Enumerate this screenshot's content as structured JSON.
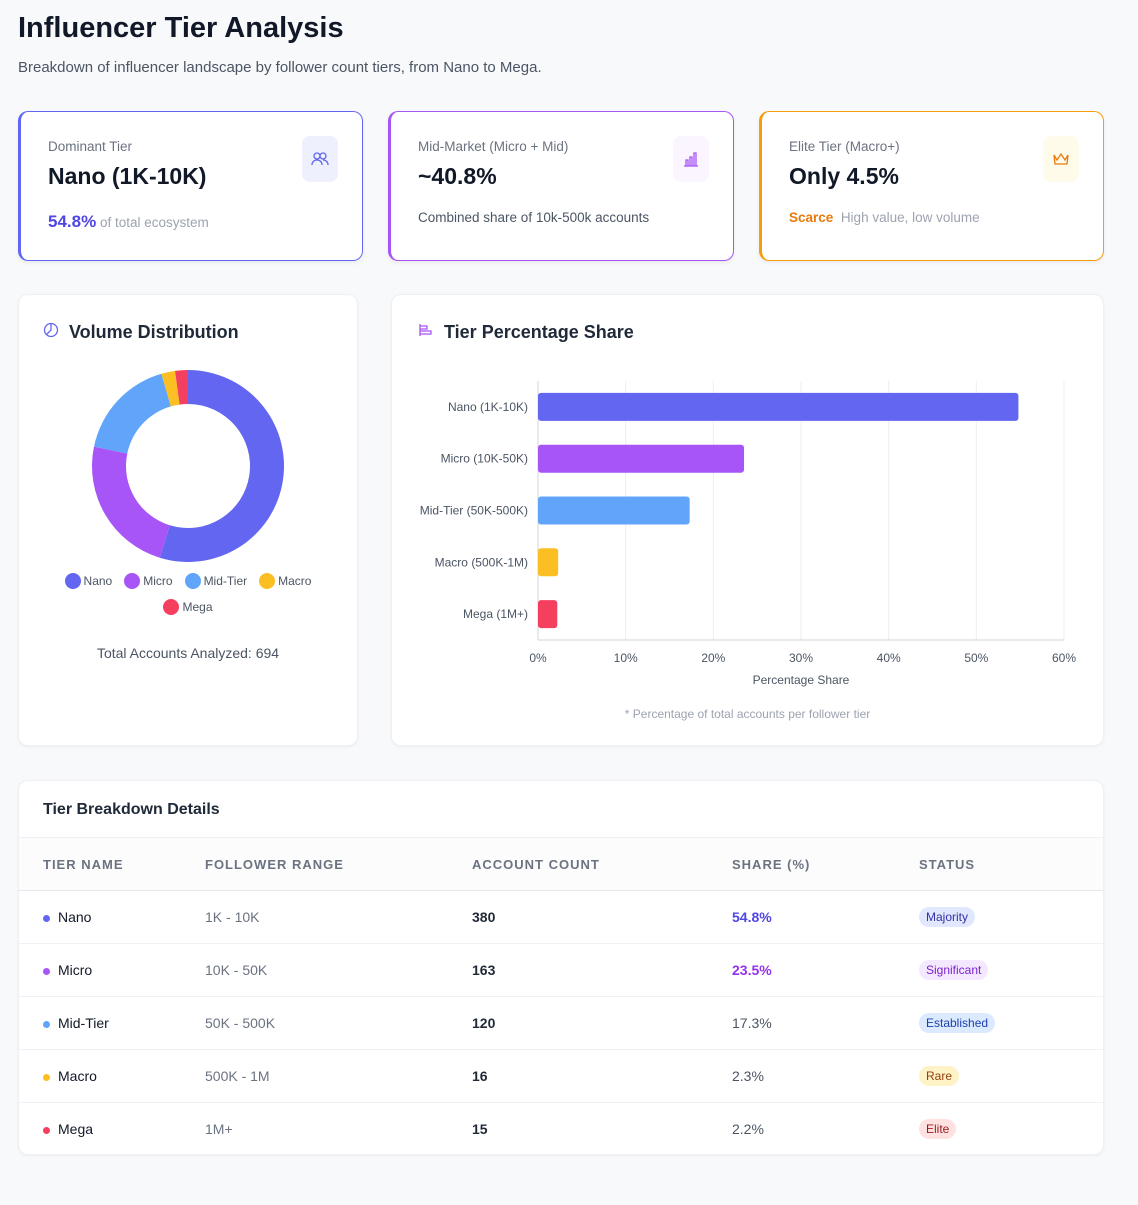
{
  "header": {
    "title": "Influencer Tier Analysis",
    "subtitle": "Breakdown of influencer landscape by follower count tiers, from Nano to Mega."
  },
  "kpis": [
    {
      "label": "Dominant Tier",
      "value": "Nano (1K-10K)",
      "highlight": "54.8%",
      "note": "of total ecosystem",
      "icon": "users-icon",
      "color": "#6366f1"
    },
    {
      "label": "Mid-Market (Micro + Mid)",
      "value": "~40.8%",
      "note": "Combined share of 10k-500k accounts",
      "icon": "bar-chart-icon",
      "color": "#a855f7"
    },
    {
      "label": "Elite Tier (Macro+)",
      "value": "Only 4.5%",
      "highlight": "Scarce",
      "note": "High value, low volume",
      "icon": "crown-icon",
      "color": "#f59e0b"
    }
  ],
  "donut": {
    "title": "Volume Distribution",
    "total_label": "Total Accounts Analyzed: 694"
  },
  "bar": {
    "title": "Tier Percentage Share",
    "footnote": "* Percentage of total accounts per follower tier"
  },
  "chart_data": [
    {
      "type": "pie",
      "title": "Volume Distribution",
      "categories": [
        "Nano",
        "Micro",
        "Mid-Tier",
        "Macro",
        "Mega"
      ],
      "values": [
        380,
        163,
        120,
        16,
        15
      ],
      "colors": [
        "#6366f1",
        "#a855f7",
        "#60a5fa",
        "#fbbf24",
        "#f43f5e"
      ],
      "legend": "bottom"
    },
    {
      "type": "bar",
      "orientation": "horizontal",
      "title": "Tier Percentage Share",
      "categories": [
        "Nano (1K-10K)",
        "Micro (10K-50K)",
        "Mid-Tier (50K-500K)",
        "Macro (500K-1M)",
        "Mega (1M+)"
      ],
      "values": [
        54.8,
        23.5,
        17.3,
        2.3,
        2.2
      ],
      "colors": [
        "#6366f1",
        "#a855f7",
        "#60a5fa",
        "#fbbf24",
        "#f43f5e"
      ],
      "xlabel": "Percentage Share",
      "xlim": [
        0,
        60
      ],
      "xticks": [
        "0%",
        "10%",
        "20%",
        "30%",
        "40%",
        "50%",
        "60%"
      ],
      "grid": true
    }
  ],
  "table": {
    "title": "Tier Breakdown Details",
    "headers": [
      "TIER NAME",
      "FOLLOWER RANGE",
      "ACCOUNT COUNT",
      "SHARE (%)",
      "STATUS"
    ],
    "rows": [
      {
        "name": "Nano",
        "range": "1K - 10K",
        "count": "380",
        "share": "54.8%",
        "status": "Majority",
        "color": "#6366f1",
        "share_color": "#4f46e5",
        "badge_bg": "#e0e7ff",
        "badge_fg": "#3730a3",
        "bold": true
      },
      {
        "name": "Micro",
        "range": "10K - 50K",
        "count": "163",
        "share": "23.5%",
        "status": "Significant",
        "color": "#a855f7",
        "share_color": "#9333ea",
        "badge_bg": "#f3e8ff",
        "badge_fg": "#7e22ce",
        "bold": true
      },
      {
        "name": "Mid-Tier",
        "range": "50K - 500K",
        "count": "120",
        "share": "17.3%",
        "status": "Established",
        "color": "#60a5fa",
        "share_color": "#4b5563",
        "badge_bg": "#dbeafe",
        "badge_fg": "#1e40af",
        "bold": false
      },
      {
        "name": "Macro",
        "range": "500K - 1M",
        "count": "16",
        "share": "2.3%",
        "status": "Rare",
        "color": "#fbbf24",
        "share_color": "#4b5563",
        "badge_bg": "#fef3c7",
        "badge_fg": "#92400e",
        "bold": false
      },
      {
        "name": "Mega",
        "range": "1M+",
        "count": "15",
        "share": "2.2%",
        "status": "Elite",
        "color": "#f43f5e",
        "share_color": "#4b5563",
        "badge_bg": "#fee2e2",
        "badge_fg": "#991b1b",
        "bold": false
      }
    ]
  }
}
